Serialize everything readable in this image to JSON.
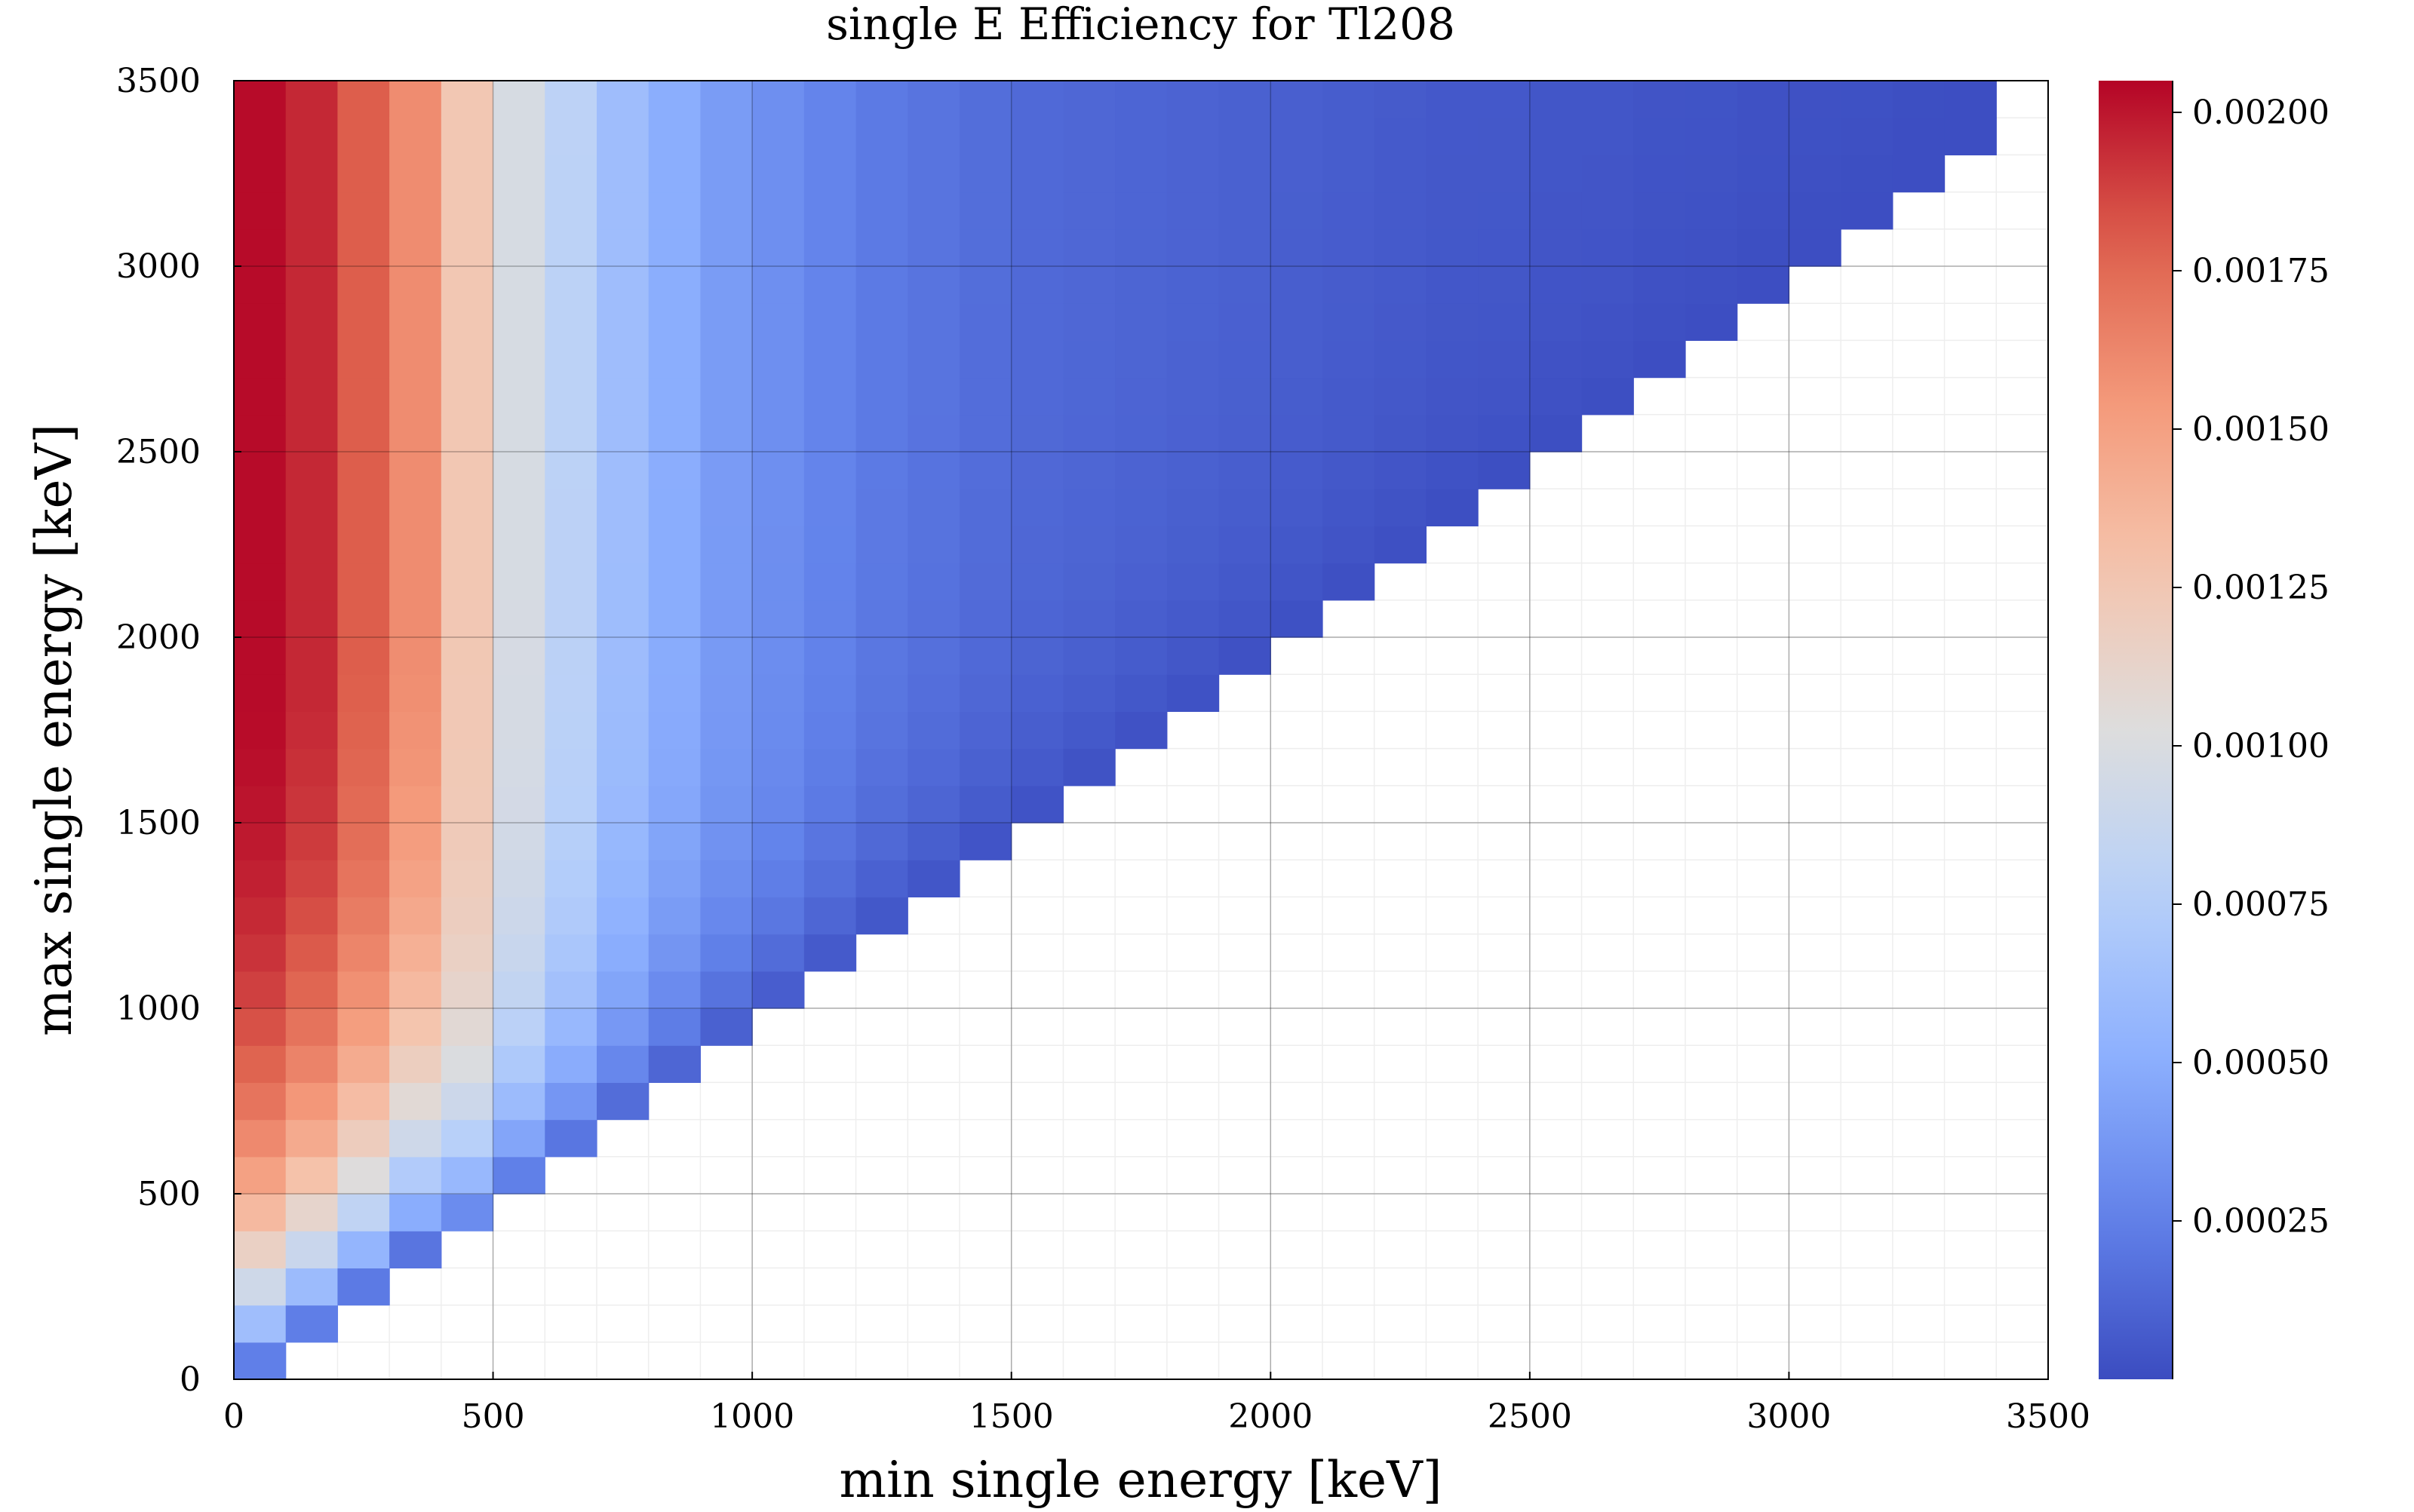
{
  "chart_data": {
    "type": "heatmap",
    "title": "single E Efficiency for Tl208",
    "xlabel": "min single energy [keV]",
    "ylabel": "max single energy [keV]",
    "xlim": [
      0,
      3500
    ],
    "ylim": [
      0,
      3500
    ],
    "bin_width": 100,
    "x_ticks": [
      "0",
      "500",
      "1000",
      "1500",
      "2000",
      "2500",
      "3000",
      "3500"
    ],
    "y_ticks": [
      "0",
      "500",
      "1000",
      "1500",
      "2000",
      "2500",
      "3000",
      "3500"
    ],
    "colorbar": {
      "colormap": "coolwarm",
      "range": [
        0,
        0.00205
      ],
      "ticks": [
        "0.00025",
        "0.00050",
        "0.00075",
        "0.00100",
        "0.00125",
        "0.00150",
        "0.00175",
        "0.00200"
      ]
    },
    "column_saturation_efficiency": [
      0.00203,
      0.00195,
      0.0018,
      0.0016,
      0.00125,
      0.00098,
      0.0008,
      0.00062,
      0.0005,
      0.0004,
      0.00033,
      0.00027,
      0.00022,
      0.00019,
      0.00016,
      0.00014,
      0.00013,
      0.00012,
      0.00011,
      0.0001,
      9e-05,
      8e-05,
      7e-05,
      6e-05,
      6e-05,
      5e-05,
      5e-05,
      4e-05,
      4e-05,
      3e-05,
      3e-05,
      3e-05,
      2e-05,
      2e-05
    ],
    "note_rule": "cell efficiency = column_saturation_efficiency[col] * ramp(rows above diagonal); empty where max < min",
    "grid": true,
    "legend": "colorbar-right"
  }
}
